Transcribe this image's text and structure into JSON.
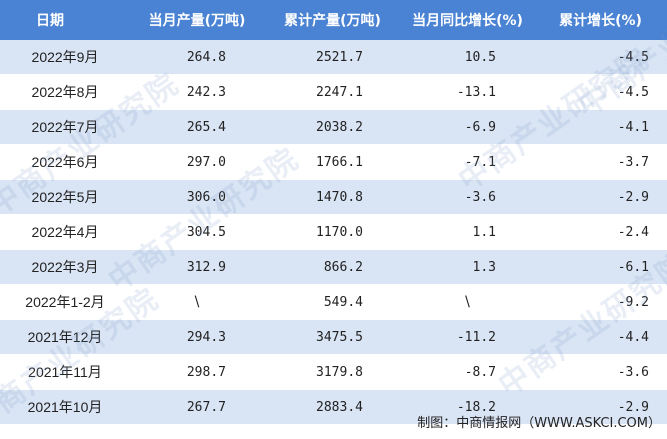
{
  "table": {
    "headers": [
      "日期",
      "当月产量(万吨)",
      "累计产量(万吨)",
      "当月同比增长(%)",
      "累计增长(%)"
    ],
    "rows": [
      [
        "2022年9月",
        "264.8",
        "2521.7",
        "10.5",
        "-4.5"
      ],
      [
        "2022年8月",
        "242.3",
        "2247.1",
        "-13.1",
        "-4.5"
      ],
      [
        "2022年7月",
        "265.4",
        "2038.2",
        "-6.9",
        "-4.1"
      ],
      [
        "2022年6月",
        "297.0",
        "1766.1",
        "-7.1",
        "-3.7"
      ],
      [
        "2022年5月",
        "306.0",
        "1470.8",
        "-3.6",
        "-2.9"
      ],
      [
        "2022年4月",
        "304.5",
        "1170.0",
        "1.1",
        "-2.4"
      ],
      [
        "2022年3月",
        "312.9",
        "866.2",
        "1.3",
        "-6.1"
      ],
      [
        "2022年1-2月",
        "\\",
        "549.4",
        "\\",
        "-9.2"
      ],
      [
        "2021年12月",
        "294.3",
        "3475.5",
        "-11.2",
        "-4.4"
      ],
      [
        "2021年11月",
        "298.7",
        "3179.8",
        "-8.7",
        "-3.6"
      ],
      [
        "2021年10月",
        "267.7",
        "2883.4",
        "-18.2",
        "-2.9"
      ]
    ]
  },
  "footer": {
    "source": "制图：中商情报网（WWW.ASKCI.COM）"
  },
  "watermark": "中商产业研究院",
  "colors": {
    "header_bg": "#4a83d3",
    "stripe": "#d9e4f4"
  }
}
